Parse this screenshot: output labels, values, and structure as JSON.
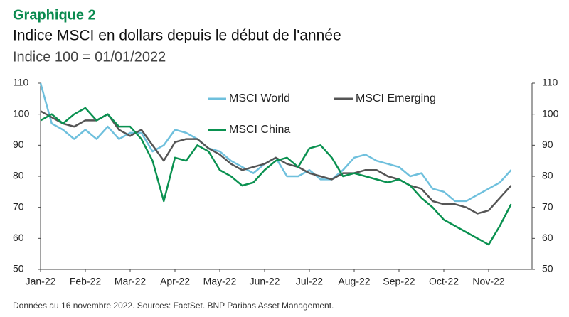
{
  "chart_data": {
    "type": "line",
    "title": "Graphique 2",
    "subtitle": "Indice MSCI en dollars depuis le début de l'année",
    "y_axis_label": "Indice 100 = 01/01/2022",
    "note": "Données au 16 novembre 2022. Sources: FactSet. BNP Paribas Asset Management.",
    "categories": [
      "Jan-22",
      null,
      null,
      null,
      "Feb-22",
      null,
      null,
      null,
      "Mar-22",
      null,
      null,
      null,
      "Apr-22",
      null,
      null,
      null,
      "May-22",
      null,
      null,
      null,
      "Jun-22",
      null,
      null,
      null,
      "Jul-22",
      null,
      null,
      null,
      "Aug-22",
      null,
      null,
      null,
      "Sep-22",
      null,
      null,
      null,
      "Oct-22",
      null,
      null,
      null,
      "Nov-22",
      null,
      null
    ],
    "series": [
      {
        "name": "MSCI World",
        "color": "#6fc0dd",
        "values": [
          110,
          97,
          95,
          92,
          95,
          92,
          96,
          92,
          94,
          94,
          88,
          90,
          95,
          94,
          92,
          89,
          88,
          85,
          83,
          81,
          84,
          86,
          80,
          80,
          82,
          79,
          79,
          82,
          86,
          87,
          85,
          84,
          83,
          80,
          81,
          76,
          75,
          72,
          72,
          74,
          76,
          78,
          82
        ]
      },
      {
        "name": "MSCI Emerging",
        "color": "#555555",
        "values": [
          101,
          99,
          97,
          96,
          98,
          98,
          100,
          95,
          93,
          95,
          90,
          85,
          91,
          92,
          92,
          89,
          87,
          84,
          82,
          83,
          84,
          86,
          84,
          83,
          81,
          80,
          79,
          81,
          81,
          82,
          82,
          80,
          79,
          77,
          76,
          72,
          71,
          71,
          70,
          68,
          69,
          73,
          77
        ]
      },
      {
        "name": "MSCI China",
        "color": "#0a9150",
        "values": [
          98,
          100,
          97,
          100,
          102,
          98,
          100,
          96,
          96,
          92,
          85,
          72,
          86,
          85,
          90,
          88,
          82,
          80,
          77,
          78,
          82,
          85,
          86,
          83,
          89,
          90,
          86,
          80,
          81,
          80,
          79,
          78,
          79,
          77,
          73,
          70,
          66,
          64,
          62,
          60,
          58,
          64,
          71
        ]
      }
    ],
    "ylim": [
      50,
      110
    ],
    "yticks": [
      50,
      60,
      70,
      80,
      90,
      100,
      110
    ],
    "y2lim": [
      50,
      110
    ],
    "y2ticks": [
      50,
      60,
      70,
      80,
      90,
      100,
      110
    ],
    "grid": false,
    "legend": "top"
  }
}
